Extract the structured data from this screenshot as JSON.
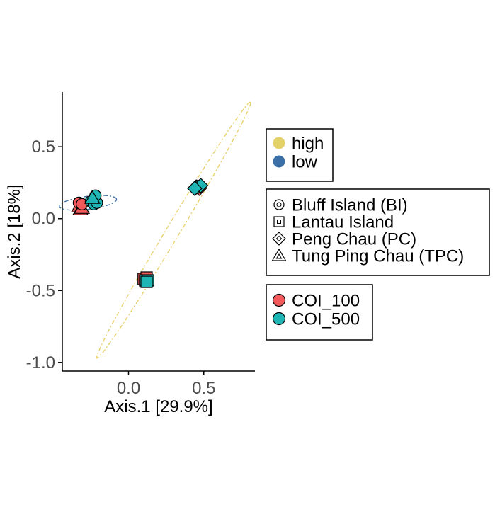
{
  "chart_data": {
    "type": "scatter",
    "title": "",
    "xlabel": "Axis.1   [29.9%]",
    "ylabel": "Axis.2   [18%]",
    "xlim": [
      -0.44,
      0.84
    ],
    "ylim": [
      -1.06,
      0.88
    ],
    "xticks": [
      0.0,
      0.5
    ],
    "xtick_labels": [
      "0.0",
      "0.5"
    ],
    "yticks": [
      0.5,
      0.0,
      -0.5,
      -1.0
    ],
    "ytick_labels": [
      "0.5",
      "0.0",
      "-0.5",
      "-1.0"
    ],
    "grid": false,
    "legend_position": "right",
    "points": [
      {
        "x": -0.33,
        "y": 0.08,
        "site": "Tung Ping Chau (TPC)",
        "marker": "COI_100"
      },
      {
        "x": -0.32,
        "y": 0.06,
        "site": "Tung Ping Chau (TPC)",
        "marker": "COI_100"
      },
      {
        "x": -0.31,
        "y": 0.07,
        "site": "Tung Ping Chau (TPC)",
        "marker": "COI_100"
      },
      {
        "x": -0.33,
        "y": 0.11,
        "site": "Bluff Island (BI)",
        "marker": "COI_100"
      },
      {
        "x": -0.31,
        "y": 0.1,
        "site": "Bluff Island (BI)",
        "marker": "COI_100"
      },
      {
        "x": -0.25,
        "y": 0.12,
        "site": "Bluff Island (BI)",
        "marker": "COI_500"
      },
      {
        "x": -0.23,
        "y": 0.1,
        "site": "Bluff Island (BI)",
        "marker": "COI_500"
      },
      {
        "x": -0.21,
        "y": 0.11,
        "site": "Bluff Island (BI)",
        "marker": "COI_500"
      },
      {
        "x": -0.22,
        "y": 0.16,
        "site": "Bluff Island (BI)",
        "marker": "COI_500"
      },
      {
        "x": -0.24,
        "y": 0.14,
        "site": "Tung Ping Chau (TPC)",
        "marker": "COI_500"
      },
      {
        "x": 0.45,
        "y": 0.22,
        "site": "Peng Chau (PC)",
        "marker": "COI_100"
      },
      {
        "x": 0.47,
        "y": 0.21,
        "site": "Peng Chau (PC)",
        "marker": "COI_100"
      },
      {
        "x": 0.46,
        "y": 0.22,
        "site": "Peng Chau (PC)",
        "marker": "COI_500"
      },
      {
        "x": 0.48,
        "y": 0.23,
        "site": "Peng Chau (PC)",
        "marker": "COI_500"
      },
      {
        "x": 0.44,
        "y": 0.21,
        "site": "Peng Chau (PC)",
        "marker": "COI_500"
      },
      {
        "x": 0.1,
        "y": -0.42,
        "site": "Lantau Island",
        "marker": "COI_100"
      },
      {
        "x": 0.12,
        "y": -0.41,
        "site": "Lantau Island",
        "marker": "COI_100"
      },
      {
        "x": 0.11,
        "y": -0.43,
        "site": "Lantau Island",
        "marker": "COI_500"
      },
      {
        "x": 0.13,
        "y": -0.43,
        "site": "Lantau Island",
        "marker": "COI_500"
      },
      {
        "x": 0.12,
        "y": -0.44,
        "site": "Lantau Island",
        "marker": "COI_500"
      }
    ],
    "ellipses": [
      {
        "group": "low",
        "color": "#3B6FA8",
        "center": [
          -0.27,
          0.11
        ],
        "ry_axis": [
          0.19,
          0.025
        ],
        "minor": 0.045
      },
      {
        "group": "high",
        "color": "#E8CF66",
        "center": [
          0.3,
          -0.08
        ],
        "ry_axis": [
          0.51,
          0.89
        ],
        "minor": 0.045
      }
    ],
    "legends": [
      {
        "title": "",
        "items": [
          {
            "label": "high",
            "color": "#E3D26A",
            "shape": "circle-filled"
          },
          {
            "label": "low",
            "color": "#3B6FA8",
            "shape": "circle-filled"
          }
        ]
      },
      {
        "title": "",
        "items": [
          {
            "label": "Bluff Island (BI)",
            "shape": "circle"
          },
          {
            "label": "Lantau Island",
            "shape": "square"
          },
          {
            "label": "Peng Chau (PC)",
            "shape": "diamond"
          },
          {
            "label": "Tung Ping Chau (TPC)",
            "shape": "triangle"
          }
        ]
      },
      {
        "title": "",
        "items": [
          {
            "label": "COI_100",
            "color": "#F2595A",
            "shape": "circle-filled"
          },
          {
            "label": "COI_500",
            "color": "#1FB5B5",
            "shape": "circle-filled"
          }
        ]
      }
    ],
    "colors": {
      "COI_100": "#F2595A",
      "COI_500": "#1FB5B5"
    }
  }
}
